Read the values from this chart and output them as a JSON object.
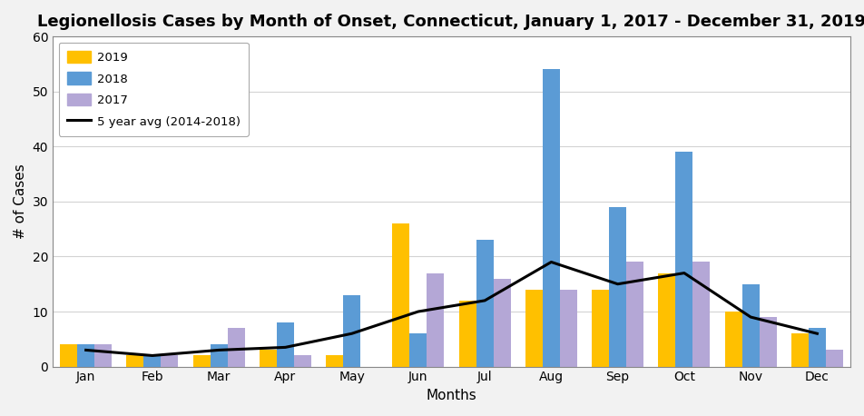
{
  "title": "Legionellosis Cases by Month of Onset, Connecticut, January 1, 2017 - December 31, 2019",
  "xlabel": "Months",
  "ylabel": "# of Cases",
  "months": [
    "Jan",
    "Feb",
    "Mar",
    "Apr",
    "May",
    "Jun",
    "Jul",
    "Aug",
    "Sep",
    "Oct",
    "Nov",
    "Dec"
  ],
  "y2019": [
    4,
    2,
    2,
    3,
    2,
    26,
    12,
    14,
    14,
    17,
    10,
    6
  ],
  "y2018": [
    4,
    2,
    4,
    8,
    13,
    6,
    23,
    54,
    29,
    39,
    15,
    7
  ],
  "y2017": [
    4,
    2,
    7,
    2,
    0,
    17,
    16,
    14,
    19,
    19,
    9,
    3
  ],
  "avg_5yr": [
    3,
    2,
    3,
    3.5,
    6,
    10,
    12,
    19,
    15,
    17,
    9,
    6
  ],
  "color_2019": "#FFC000",
  "color_2018": "#5B9BD5",
  "color_2017": "#B4A7D6",
  "color_avg": "#000000",
  "fig_bg": "#F2F2F2",
  "plot_bg": "#FFFFFF",
  "ylim": [
    0,
    60
  ],
  "yticks": [
    0,
    10,
    20,
    30,
    40,
    50,
    60
  ],
  "bar_width": 0.26,
  "legend_labels": [
    "2019",
    "2018",
    "2017",
    "5 year avg (2014-2018)"
  ],
  "title_fontsize": 13,
  "axis_label_fontsize": 11,
  "tick_fontsize": 10,
  "legend_fontsize": 9.5
}
